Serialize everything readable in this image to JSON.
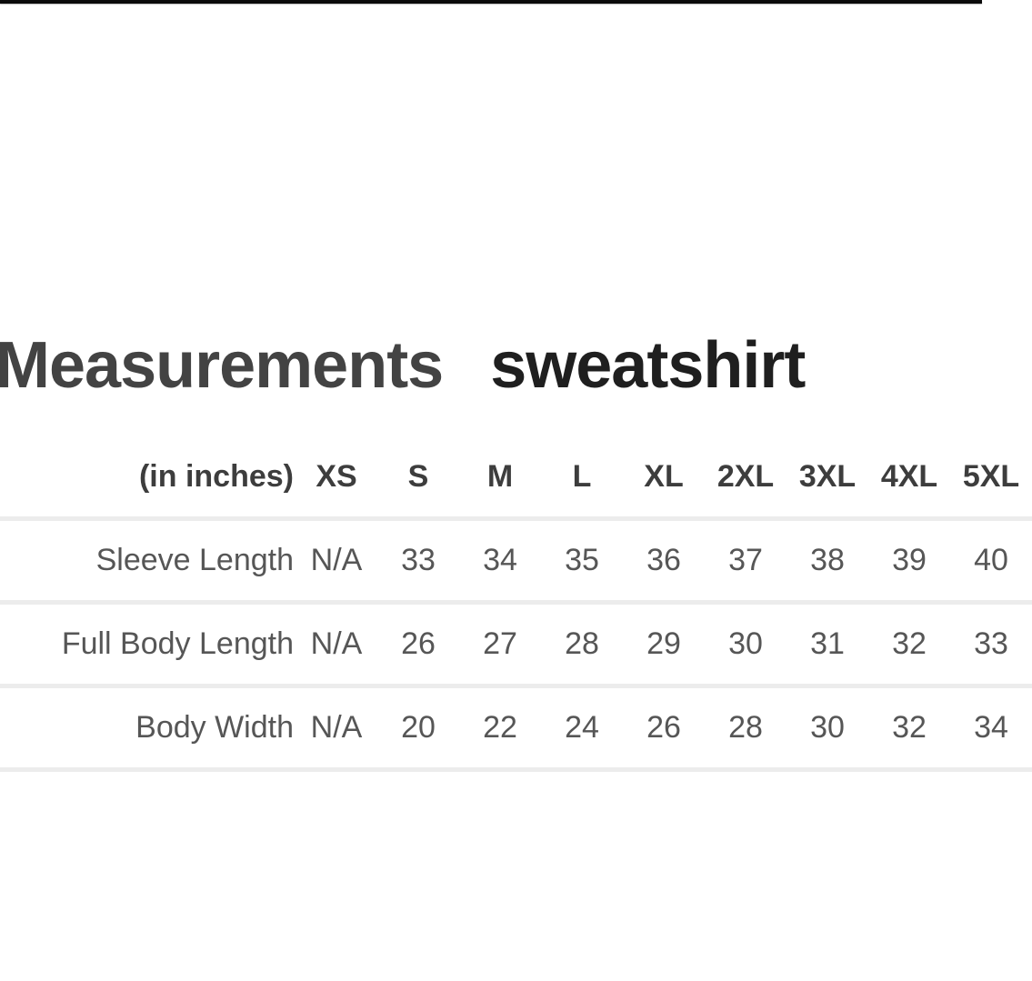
{
  "title": {
    "heading": "Measurements",
    "product": "sweatshirt"
  },
  "size_table": {
    "columns": [
      "(in inches)",
      "XS",
      "S",
      "M",
      "L",
      "XL",
      "2XL",
      "3XL",
      "4XL",
      "5XL"
    ],
    "rows": [
      {
        "label": "Sleeve Length",
        "values": [
          "N/A",
          "33",
          "34",
          "35",
          "36",
          "37",
          "38",
          "39",
          "40"
        ]
      },
      {
        "label": "Full Body Length",
        "values": [
          "N/A",
          "26",
          "27",
          "28",
          "29",
          "30",
          "31",
          "32",
          "33"
        ]
      },
      {
        "label": "Body Width",
        "values": [
          "N/A",
          "20",
          "22",
          "24",
          "26",
          "28",
          "30",
          "32",
          "34"
        ]
      }
    ]
  },
  "colors": {
    "background": "#ffffff",
    "top_bar": "#0a0a0a",
    "title_heading_text": "#434343",
    "title_product_text": "#1f1f1f",
    "header_text": "#3d3d3d",
    "body_text": "#565656",
    "divider": "#ececec"
  }
}
